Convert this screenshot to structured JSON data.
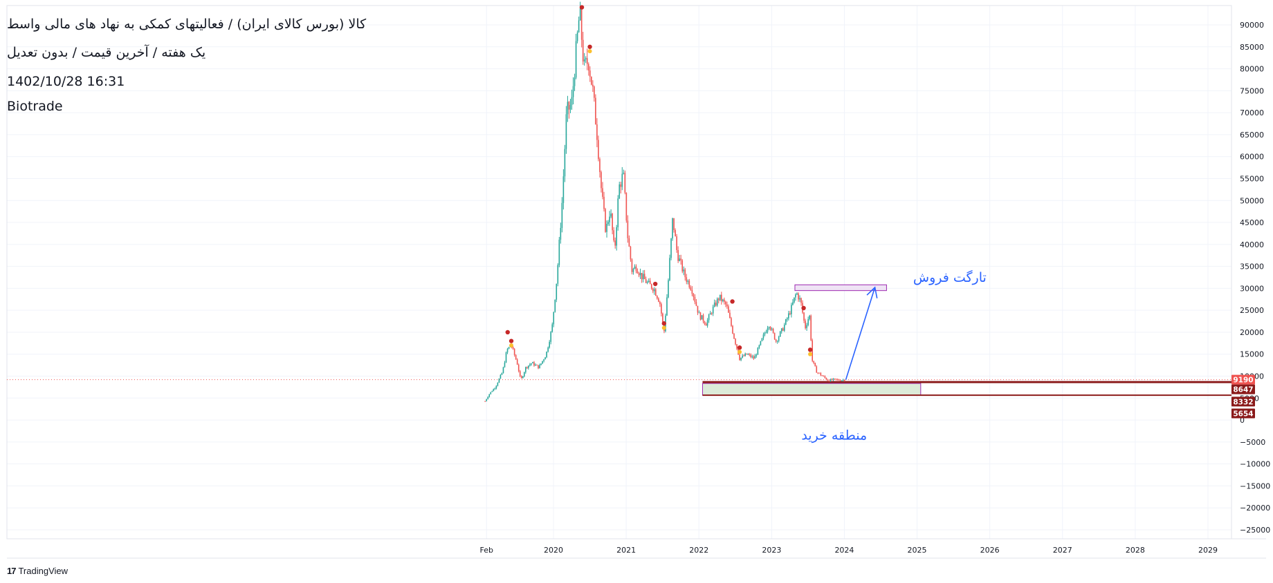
{
  "header": {
    "title_line": "کالا (بورس کالای ایران) / فعالیتهای کمکی به نهاد های مالی واسط",
    "subtitle_line": "یک هفته / آخرین قیمت / بدون تعدیل",
    "timestamp": "1402/10/28 16:31",
    "author": "Biotrade"
  },
  "footer": {
    "brand_mark": "17",
    "brand_name": "TradingView"
  },
  "colors": {
    "up": "#26a69a",
    "down": "#ef5350",
    "price_line": "#ef5350",
    "buy_zone_fill": "#dcebd9",
    "buy_zone_border": "#9c27b0",
    "target_zone_border": "#9c27b0",
    "support_line": "#8b1a1a",
    "arrow": "#2962ff",
    "annotation_text": "#2962ff",
    "label_red": "#ef5350",
    "label_dark": "#8b1a1a"
  },
  "chart_data": {
    "type": "candlestick",
    "ylim": [
      -27000,
      94000
    ],
    "y_ticks": [
      90000,
      85000,
      80000,
      75000,
      70000,
      65000,
      60000,
      55000,
      50000,
      45000,
      40000,
      35000,
      30000,
      25000,
      20000,
      15000,
      10000,
      5000,
      0,
      -5000,
      -10000,
      -15000,
      -20000,
      -25000
    ],
    "x_ticks": [
      {
        "label": "Feb",
        "t": 2019.08
      },
      {
        "label": "2020",
        "t": 2020.0
      },
      {
        "label": "2021",
        "t": 2021.0
      },
      {
        "label": "2022",
        "t": 2022.0
      },
      {
        "label": "2023",
        "t": 2023.0
      },
      {
        "label": "2024",
        "t": 2024.0
      },
      {
        "label": "2025",
        "t": 2025.0
      },
      {
        "label": "2026",
        "t": 2026.0
      },
      {
        "label": "2027",
        "t": 2027.0
      },
      {
        "label": "2028",
        "t": 2028.0
      },
      {
        "label": "2029",
        "t": 2029.0
      }
    ],
    "xlim": [
      2012.35,
      2029.45
    ],
    "grid": true,
    "close_path": [
      [
        2019.06,
        4300
      ],
      [
        2019.12,
        6000
      ],
      [
        2019.2,
        7500
      ],
      [
        2019.3,
        11000
      ],
      [
        2019.36,
        16000
      ],
      [
        2019.42,
        17000
      ],
      [
        2019.5,
        13000
      ],
      [
        2019.55,
        9000
      ],
      [
        2019.62,
        12000
      ],
      [
        2019.7,
        13000
      ],
      [
        2019.8,
        12000
      ],
      [
        2019.9,
        15000
      ],
      [
        2019.98,
        21000
      ],
      [
        2020.05,
        33000
      ],
      [
        2020.12,
        50000
      ],
      [
        2020.18,
        70000
      ],
      [
        2020.25,
        72000
      ],
      [
        2020.3,
        82000
      ],
      [
        2020.36,
        93000
      ],
      [
        2020.42,
        80000
      ],
      [
        2020.48,
        82000
      ],
      [
        2020.54,
        75000
      ],
      [
        2020.6,
        65000
      ],
      [
        2020.66,
        52000
      ],
      [
        2020.72,
        43000
      ],
      [
        2020.78,
        48000
      ],
      [
        2020.84,
        38000
      ],
      [
        2020.9,
        53000
      ],
      [
        2020.96,
        56000
      ],
      [
        2021.02,
        42000
      ],
      [
        2021.08,
        34000
      ],
      [
        2021.14,
        35000
      ],
      [
        2021.2,
        33000
      ],
      [
        2021.3,
        31000
      ],
      [
        2021.38,
        30000
      ],
      [
        2021.46,
        27000
      ],
      [
        2021.52,
        20000
      ],
      [
        2021.58,
        32000
      ],
      [
        2021.64,
        46000
      ],
      [
        2021.7,
        38000
      ],
      [
        2021.8,
        33000
      ],
      [
        2021.9,
        30000
      ],
      [
        2022.0,
        24000
      ],
      [
        2022.1,
        22000
      ],
      [
        2022.18,
        25000
      ],
      [
        2022.28,
        28000
      ],
      [
        2022.38,
        26000
      ],
      [
        2022.48,
        19000
      ],
      [
        2022.56,
        14000
      ],
      [
        2022.66,
        15000
      ],
      [
        2022.76,
        14000
      ],
      [
        2022.86,
        18000
      ],
      [
        2022.96,
        22000
      ],
      [
        2023.06,
        18000
      ],
      [
        2023.16,
        21000
      ],
      [
        2023.26,
        25000
      ],
      [
        2023.34,
        29000
      ],
      [
        2023.4,
        27000
      ],
      [
        2023.46,
        21000
      ],
      [
        2023.52,
        24000
      ],
      [
        2023.56,
        13500
      ],
      [
        2023.62,
        11000
      ],
      [
        2023.7,
        10000
      ],
      [
        2023.78,
        9000
      ],
      [
        2023.86,
        9200
      ],
      [
        2023.94,
        9100
      ],
      [
        2024.02,
        9190
      ]
    ],
    "current_price": 9190,
    "signals_red": [
      [
        2019.37,
        20000
      ],
      [
        2019.42,
        18000
      ],
      [
        2020.39,
        94000
      ],
      [
        2020.5,
        85000
      ],
      [
        2021.4,
        31000
      ],
      [
        2021.52,
        22000
      ],
      [
        2022.46,
        27000
      ],
      [
        2022.56,
        16500
      ],
      [
        2023.44,
        25500
      ],
      [
        2023.53,
        16000
      ]
    ],
    "signals_yellow": [
      [
        2019.42,
        17000
      ],
      [
        2020.5,
        84000
      ],
      [
        2021.52,
        21000
      ],
      [
        2022.56,
        15500
      ],
      [
        2023.53,
        15000
      ]
    ],
    "price_labels": [
      {
        "value": "9190",
        "y": 9190,
        "color": "#ef5350"
      },
      {
        "value": "8647",
        "y": 7000,
        "color": "#8b1a1a"
      },
      {
        "value": "8332",
        "y": 4200,
        "color": "#8b1a1a"
      },
      {
        "value": "5654",
        "y": 1500,
        "color": "#8b1a1a"
      }
    ],
    "annotations": {
      "target_label": "تارگت فروش",
      "buy_zone_label": "منطقه خرید",
      "target_box": {
        "t1": 2023.32,
        "t2": 2024.58,
        "y1": 29800,
        "y2": 30800
      },
      "buy_box": {
        "t1": 2022.05,
        "t2": 2025.05,
        "y1": 5654,
        "y2": 8332
      },
      "support_line": {
        "t1": 2022.05,
        "y": 8647
      },
      "support_line_low": {
        "t1": 2022.05,
        "y": 5654
      },
      "arrow": {
        "t1": 2024.02,
        "y1": 9190,
        "t2": 2024.42,
        "y2": 30200
      }
    }
  }
}
